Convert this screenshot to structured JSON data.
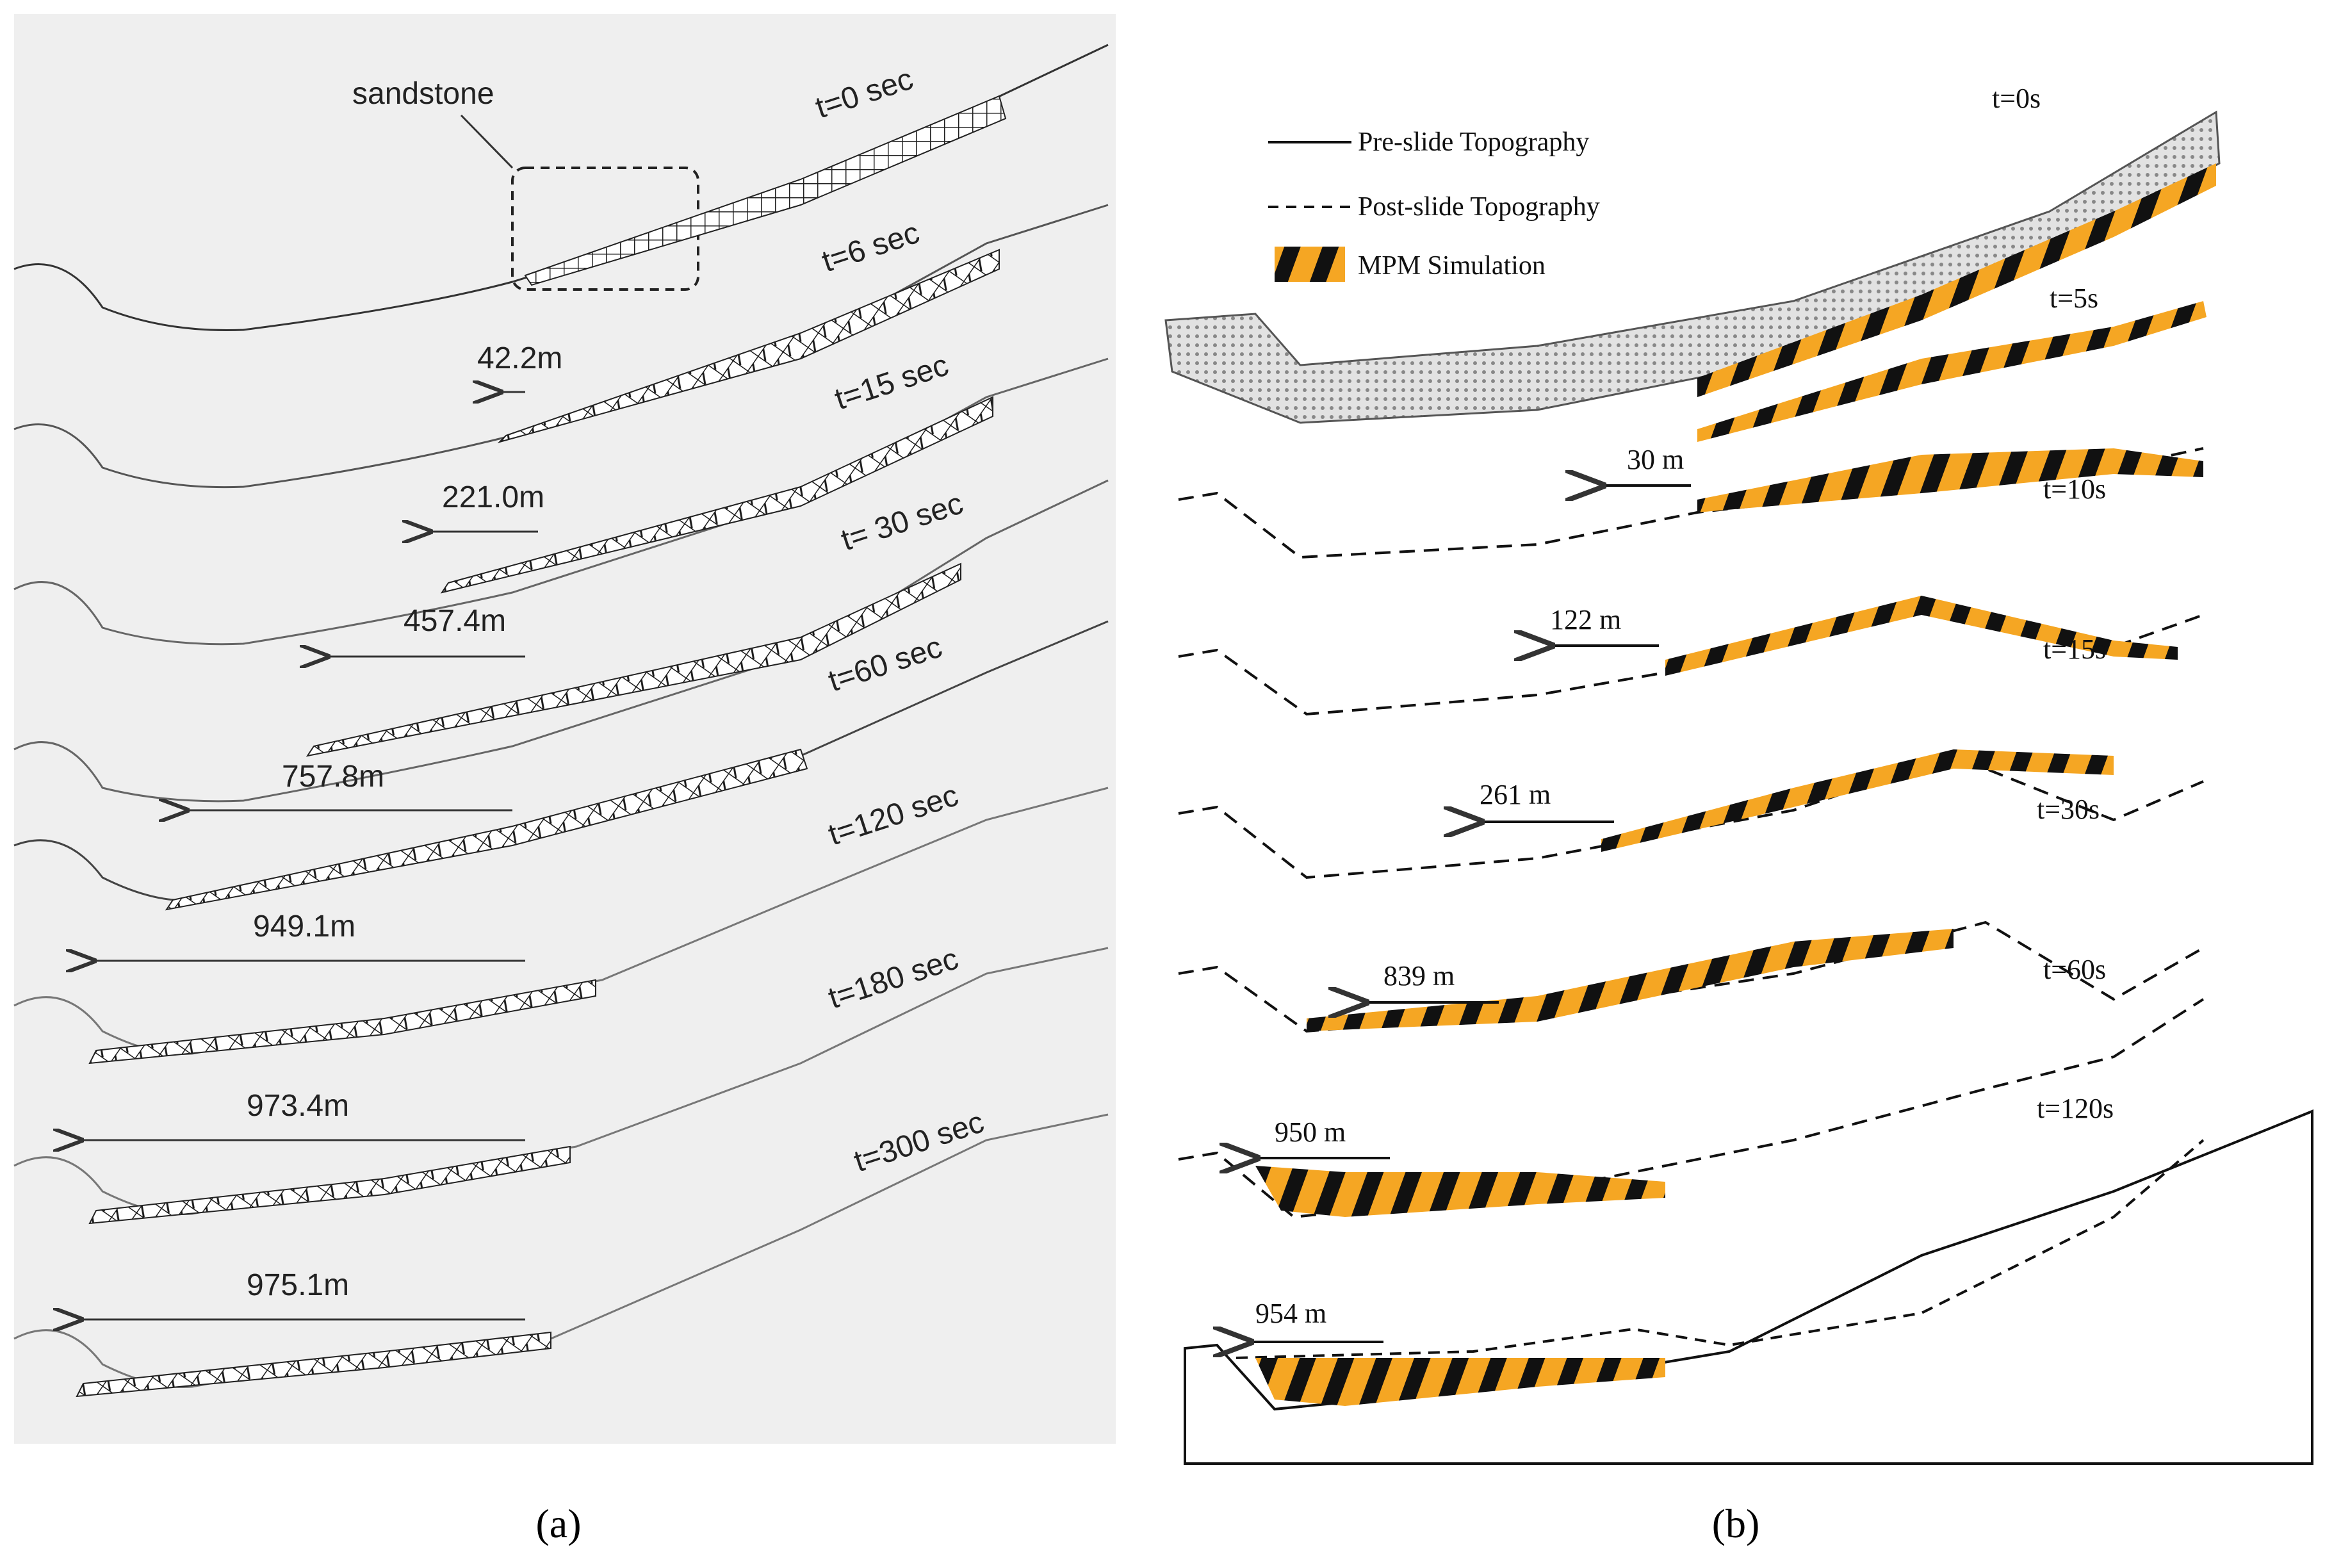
{
  "panel_a": {
    "caption": "(a)",
    "region_label": "sandstone",
    "frames": [
      {
        "time": "t=0 sec"
      },
      {
        "time": "t=6 sec",
        "runout": "42.2m"
      },
      {
        "time": "t=15 sec",
        "runout": "221.0m"
      },
      {
        "time": "t= 30 sec",
        "runout": "457.4m"
      },
      {
        "time": "t=60 sec",
        "runout": "757.8m"
      },
      {
        "time": "t=120 sec",
        "runout": "949.1m"
      },
      {
        "time": "t=180 sec",
        "runout": "973.4m"
      },
      {
        "time": "t=300 sec",
        "runout": "975.1m"
      }
    ]
  },
  "panel_b": {
    "caption": "(b)",
    "legend": {
      "pre": "Pre-slide Topography",
      "post": "Post-slide Topography",
      "mpm": "MPM Simulation"
    },
    "frames": [
      {
        "time": "t=0s"
      },
      {
        "time": "t=5s"
      },
      {
        "time": "t=10s",
        "runout": "30 m"
      },
      {
        "time": "t=15s",
        "runout": "122 m"
      },
      {
        "time": "t=30s",
        "runout": "261 m"
      },
      {
        "time": "t=60s",
        "runout": "839 m"
      },
      {
        "time": "t=120s",
        "runout": "950 m"
      },
      {
        "time": "",
        "runout": "954 m"
      }
    ]
  },
  "colors": {
    "panel_a_bg": "#efefef",
    "mpm_orange": "#f5a623",
    "mpm_black": "#111111",
    "mesh_grey": "#bdbdbd"
  }
}
